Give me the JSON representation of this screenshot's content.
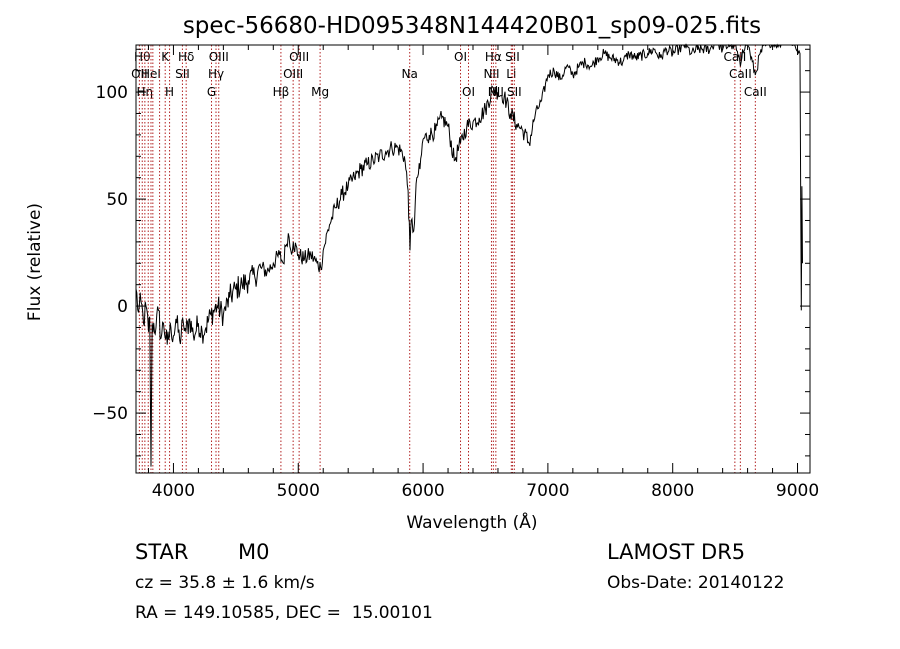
{
  "chart_data": {
    "type": "line",
    "title": "spec-56680-HD095348N144420B01_sp09-025.fits",
    "xlabel": "Wavelength (Å)",
    "ylabel": "Flux (relative)",
    "xlim": [
      3700,
      9100
    ],
    "ylim": [
      -78,
      122
    ],
    "xticks": [
      4000,
      5000,
      6000,
      7000,
      8000,
      9000
    ],
    "yticks": [
      -50,
      0,
      50,
      100
    ],
    "line_color": "#000000",
    "marker_color": "#b22222",
    "series": [
      {
        "points": [
          [
            3700,
            8
          ],
          [
            3720,
            -3
          ],
          [
            3740,
            2
          ],
          [
            3760,
            -8
          ],
          [
            3780,
            0
          ],
          [
            3800,
            -12
          ],
          [
            3810,
            -5
          ],
          [
            3820,
            -75
          ],
          [
            3830,
            -8
          ],
          [
            3860,
            -10
          ],
          [
            3880,
            -2
          ],
          [
            3900,
            -15
          ],
          [
            3920,
            -8
          ],
          [
            3950,
            -18
          ],
          [
            3980,
            -10
          ],
          [
            4000,
            -14
          ],
          [
            4020,
            -6
          ],
          [
            4050,
            -16
          ],
          [
            4080,
            -8
          ],
          [
            4100,
            -12
          ],
          [
            4130,
            -6
          ],
          [
            4160,
            -14
          ],
          [
            4200,
            -8
          ],
          [
            4230,
            -12
          ],
          [
            4260,
            -10
          ],
          [
            4300,
            -4
          ],
          [
            4350,
            0
          ],
          [
            4400,
            -4
          ],
          [
            4450,
            4
          ],
          [
            4500,
            8
          ],
          [
            4550,
            10
          ],
          [
            4600,
            12
          ],
          [
            4650,
            14
          ],
          [
            4700,
            18
          ],
          [
            4750,
            16
          ],
          [
            4800,
            20
          ],
          [
            4850,
            24
          ],
          [
            4880,
            20
          ],
          [
            4900,
            28
          ],
          [
            4920,
            34
          ],
          [
            4940,
            26
          ],
          [
            4960,
            30
          ],
          [
            5000,
            24
          ],
          [
            5050,
            22
          ],
          [
            5100,
            24
          ],
          [
            5150,
            20
          ],
          [
            5180,
            18
          ],
          [
            5200,
            26
          ],
          [
            5250,
            38
          ],
          [
            5300,
            46
          ],
          [
            5350,
            52
          ],
          [
            5400,
            56
          ],
          [
            5450,
            60
          ],
          [
            5500,
            64
          ],
          [
            5550,
            66
          ],
          [
            5600,
            68
          ],
          [
            5650,
            70
          ],
          [
            5700,
            72
          ],
          [
            5750,
            74
          ],
          [
            5800,
            74
          ],
          [
            5850,
            70
          ],
          [
            5880,
            54
          ],
          [
            5895,
            26
          ],
          [
            5905,
            40
          ],
          [
            5925,
            35
          ],
          [
            5950,
            60
          ],
          [
            5975,
            64
          ],
          [
            6000,
            78
          ],
          [
            6050,
            80
          ],
          [
            6100,
            82
          ],
          [
            6150,
            88
          ],
          [
            6200,
            84
          ],
          [
            6250,
            68
          ],
          [
            6300,
            76
          ],
          [
            6350,
            84
          ],
          [
            6400,
            86
          ],
          [
            6450,
            88
          ],
          [
            6500,
            92
          ],
          [
            6563,
            102
          ],
          [
            6600,
            100
          ],
          [
            6650,
            98
          ],
          [
            6700,
            90
          ],
          [
            6750,
            85
          ],
          [
            6800,
            82
          ],
          [
            6850,
            76
          ],
          [
            6900,
            90
          ],
          [
            6950,
            96
          ],
          [
            7000,
            108
          ],
          [
            7050,
            110
          ],
          [
            7100,
            106
          ],
          [
            7150,
            112
          ],
          [
            7200,
            108
          ],
          [
            7250,
            112
          ],
          [
            7300,
            114
          ],
          [
            7350,
            112
          ],
          [
            7400,
            116
          ],
          [
            7450,
            118
          ],
          [
            7500,
            116
          ],
          [
            7600,
            114
          ],
          [
            7650,
            118
          ],
          [
            7700,
            116
          ],
          [
            7800,
            118
          ],
          [
            7850,
            120
          ],
          [
            7900,
            116
          ],
          [
            7950,
            120
          ],
          [
            8000,
            118
          ],
          [
            8050,
            120
          ],
          [
            8100,
            122
          ],
          [
            8150,
            118
          ],
          [
            8200,
            120
          ],
          [
            8300,
            120
          ],
          [
            8350,
            124
          ],
          [
            8400,
            120
          ],
          [
            8450,
            122
          ],
          [
            8500,
            122
          ],
          [
            8542,
            112
          ],
          [
            8560,
            120
          ],
          [
            8600,
            124
          ],
          [
            8620,
            118
          ],
          [
            8662,
            108
          ],
          [
            8700,
            118
          ],
          [
            8750,
            122
          ],
          [
            8800,
            124
          ],
          [
            8850,
            122
          ],
          [
            8900,
            126
          ],
          [
            8950,
            124
          ],
          [
            9000,
            120
          ],
          [
            9020,
            118
          ],
          [
            9030,
            -2
          ],
          [
            9035,
            56
          ],
          [
            9040,
            20
          ]
        ]
      }
    ],
    "line_markers": [
      {
        "wavelength": 3727,
        "label": "OII",
        "row": 2
      },
      {
        "wavelength": 3750,
        "label": "Hθ",
        "row": 1
      },
      {
        "wavelength": 3771,
        "label": "Hη",
        "row": 3
      },
      {
        "wavelength": 3798,
        "label": "",
        "row": 0
      },
      {
        "wavelength": 3820,
        "label": "HeI",
        "row": 2
      },
      {
        "wavelength": 3835,
        "label": "",
        "row": 0
      },
      {
        "wavelength": 3889,
        "label": "",
        "row": 0
      },
      {
        "wavelength": 3934,
        "label": "K",
        "row": 1
      },
      {
        "wavelength": 3969,
        "label": "H",
        "row": 3
      },
      {
        "wavelength": 4072,
        "label": "SII",
        "row": 2
      },
      {
        "wavelength": 4102,
        "label": "Hδ",
        "row": 1
      },
      {
        "wavelength": 4305,
        "label": "G",
        "row": 3
      },
      {
        "wavelength": 4341,
        "label": "Hγ",
        "row": 2
      },
      {
        "wavelength": 4363,
        "label": "OIII",
        "row": 1
      },
      {
        "wavelength": 4861,
        "label": "Hβ",
        "row": 3
      },
      {
        "wavelength": 4959,
        "label": "OIII",
        "row": 2
      },
      {
        "wavelength": 5007,
        "label": "OIII",
        "row": 1
      },
      {
        "wavelength": 5175,
        "label": "Mg",
        "row": 3
      },
      {
        "wavelength": 5893,
        "label": "Na",
        "row": 2
      },
      {
        "wavelength": 6300,
        "label": "OI",
        "row": 1
      },
      {
        "wavelength": 6364,
        "label": "OI",
        "row": 3
      },
      {
        "wavelength": 6548,
        "label": "NII",
        "row": 2
      },
      {
        "wavelength": 6563,
        "label": "Hα",
        "row": 1
      },
      {
        "wavelength": 6583,
        "label": "NII",
        "row": 3
      },
      {
        "wavelength": 6707,
        "label": "Li",
        "row": 2
      },
      {
        "wavelength": 6716,
        "label": "SII",
        "row": 1
      },
      {
        "wavelength": 6731,
        "label": "SII",
        "row": 3
      },
      {
        "wavelength": 8498,
        "label": "CaII",
        "row": 1
      },
      {
        "wavelength": 8542,
        "label": "CaII",
        "row": 2
      },
      {
        "wavelength": 8662,
        "label": "CaII",
        "row": 3
      }
    ]
  },
  "info": {
    "object_class": "STAR",
    "subclass": "M0",
    "survey": "LAMOST DR5",
    "redshift_text": "cz = 35.8 ± 1.6 km/s",
    "obs_date_text": "Obs-Date: 20140122",
    "radec_text": "RA = 149.10585, DEC =  15.00101"
  }
}
